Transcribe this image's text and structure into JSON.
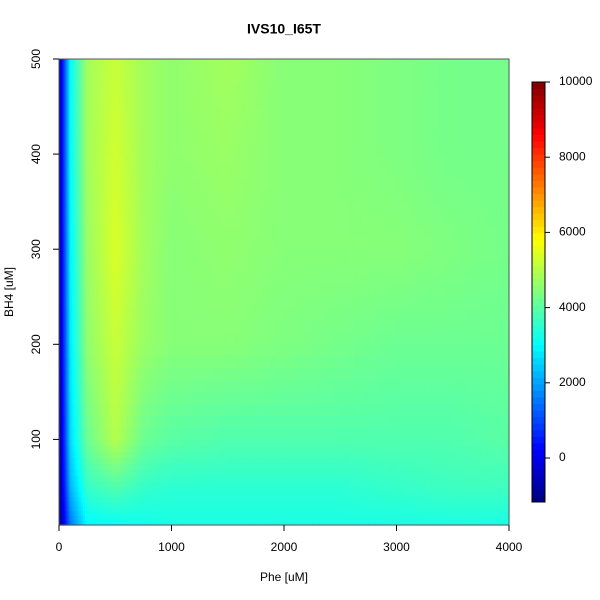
{
  "chart_data": {
    "type": "contour",
    "title": "IVS10_I65T",
    "x_label": "Phe [uM]",
    "y_label": "BH4 [uM]",
    "x": [
      0,
      100,
      250,
      500,
      750,
      1000,
      1500,
      2000,
      2500,
      3000,
      3500,
      4000
    ],
    "y": [
      10,
      50,
      100,
      200,
      300,
      400,
      500
    ],
    "z": [
      [
        -1100,
        1500,
        3000,
        3100,
        3200,
        3300,
        3300,
        3300,
        3300,
        3300,
        3300,
        3300
      ],
      [
        -1000,
        2200,
        3600,
        3900,
        3600,
        3500,
        3500,
        3500,
        3500,
        3600,
        3700,
        3700
      ],
      [
        -900,
        2600,
        4200,
        5000,
        4200,
        4000,
        3900,
        3900,
        3900,
        3900,
        3900,
        4000
      ],
      [
        -800,
        2800,
        4600,
        5200,
        4700,
        4500,
        4500,
        4400,
        4300,
        4200,
        4200,
        4200
      ],
      [
        -800,
        2900,
        4700,
        5400,
        4800,
        4500,
        4600,
        4500,
        4500,
        4500,
        4400,
        4300
      ],
      [
        -800,
        3000,
        4800,
        5300,
        4800,
        4600,
        4700,
        4500,
        4500,
        4400,
        4300,
        4300
      ],
      [
        -800,
        3000,
        4800,
        5200,
        4800,
        4600,
        4800,
        4500,
        4500,
        4400,
        4300,
        4300
      ]
    ],
    "xlim": [
      0,
      4000
    ],
    "ylim": [
      10,
      500
    ],
    "xticks": [
      0,
      1000,
      2000,
      3000,
      4000
    ],
    "yticks": [
      100,
      200,
      300,
      400,
      500
    ],
    "zlim": [
      -1170,
      10000
    ],
    "zticks": [
      0,
      2000,
      4000,
      6000,
      8000,
      10000
    ],
    "colormap": [
      "#00007F",
      "#0000FF",
      "#007FFF",
      "#00FFFF",
      "#7FFF7F",
      "#FFFF00",
      "#FF7F00",
      "#FF0000",
      "#7F0000"
    ]
  }
}
